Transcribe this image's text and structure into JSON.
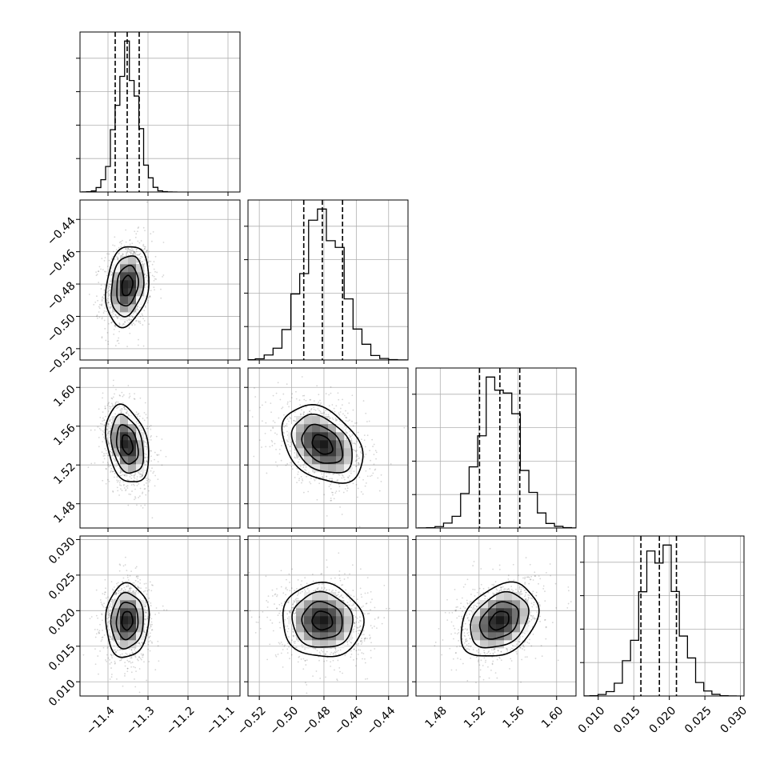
{
  "chart_data": {
    "type": "corner",
    "parameters": [
      {
        "range": [
          -11.47,
          -11.07
        ],
        "ticks": [
          -11.4,
          -11.3,
          -11.2,
          -11.1
        ],
        "tick_labels": [
          "−11.4",
          "−11.3",
          "−11.2",
          "−11.1"
        ],
        "mean": -11.352,
        "sd": 0.027,
        "quantiles": [
          -11.382,
          -11.352,
          -11.322
        ]
      },
      {
        "range": [
          -0.527,
          -0.428
        ],
        "ticks": [
          -0.52,
          -0.5,
          -0.48,
          -0.46,
          -0.44
        ],
        "tick_labels": [
          "−0.52",
          "−0.50",
          "−0.48",
          "−0.46",
          "−0.44"
        ],
        "mean": -0.481,
        "sd": 0.0125,
        "quantiles": [
          -0.4925,
          -0.481,
          -0.4685
        ]
      },
      {
        "range": [
          1.455,
          1.62
        ],
        "ticks": [
          1.48,
          1.52,
          1.56,
          1.6
        ],
        "tick_labels": [
          "1.48",
          "1.52",
          "1.56",
          "1.60"
        ],
        "mean": 1.541,
        "sd": 0.02,
        "quantiles": [
          1.5205,
          1.5415,
          1.562
        ]
      },
      {
        "range": [
          0.008,
          0.0305
        ],
        "ticks": [
          0.01,
          0.015,
          0.02,
          0.025,
          0.03
        ],
        "tick_labels": [
          "0.010",
          "0.015",
          "0.020",
          "0.025",
          "0.030"
        ],
        "mean": 0.0186,
        "sd": 0.0026,
        "quantiles": [
          0.016,
          0.0186,
          0.021
        ]
      }
    ],
    "correlations": [
      [
        1,
        0.2,
        -0.3,
        0.05
      ],
      [
        0.2,
        1,
        -0.35,
        -0.05
      ],
      [
        -0.3,
        -0.35,
        1,
        0.3
      ],
      [
        0.05,
        -0.05,
        0.3,
        1
      ]
    ],
    "contour_levels_sigma": [
      0.5,
      1,
      1.5,
      2
    ],
    "histogram_bins": 20,
    "grid": true,
    "xlabels": [],
    "ylabels": []
  }
}
